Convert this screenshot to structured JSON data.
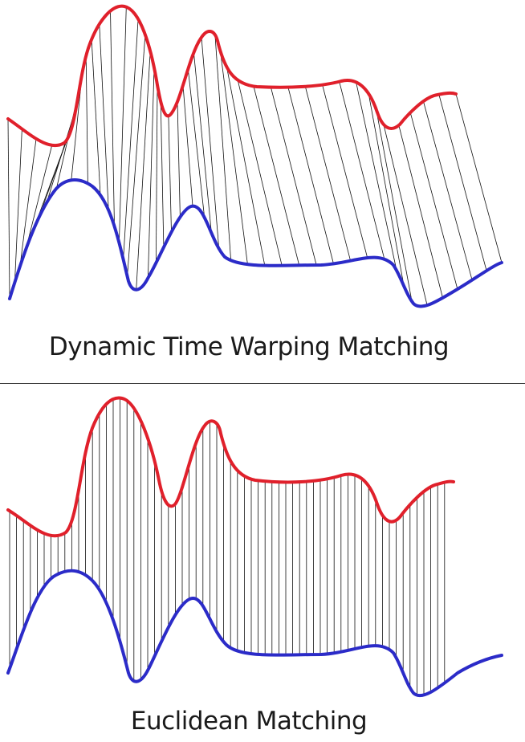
{
  "colors": {
    "query_series": "#e0202b",
    "reference_series": "#2b2bc8",
    "match_lines": "#111111"
  },
  "panels": [
    {
      "id": "dtw",
      "caption": "Dynamic Time Warping Matching",
      "alignment": "warped"
    },
    {
      "id": "euclidean",
      "caption": "Euclidean Matching",
      "alignment": "point-to-point"
    }
  ]
}
